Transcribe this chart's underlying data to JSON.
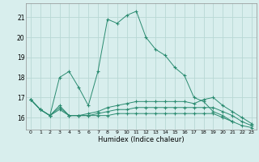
{
  "xlabel": "Humidex (Indice chaleur)",
  "x": [
    0,
    1,
    2,
    3,
    4,
    5,
    6,
    7,
    8,
    9,
    10,
    11,
    12,
    13,
    14,
    15,
    16,
    17,
    18,
    19,
    20,
    21,
    22,
    23
  ],
  "line1": [
    16.9,
    16.4,
    16.1,
    18.0,
    18.3,
    17.5,
    16.6,
    18.3,
    20.9,
    20.7,
    21.1,
    21.3,
    20.0,
    19.4,
    19.1,
    18.5,
    18.1,
    17.0,
    16.8,
    16.3,
    16.1,
    15.8,
    null,
    null
  ],
  "line2": [
    16.9,
    16.4,
    16.1,
    16.6,
    16.1,
    16.1,
    16.2,
    16.3,
    16.5,
    16.6,
    16.7,
    16.8,
    16.8,
    16.8,
    16.8,
    16.8,
    16.8,
    16.7,
    16.9,
    17.0,
    16.6,
    16.3,
    16.0,
    15.7
  ],
  "line3": [
    16.9,
    16.4,
    16.1,
    16.5,
    16.1,
    16.1,
    16.1,
    16.2,
    16.3,
    16.4,
    16.4,
    16.5,
    16.5,
    16.5,
    16.5,
    16.5,
    16.5,
    16.5,
    16.5,
    16.5,
    16.3,
    16.1,
    15.8,
    15.6
  ],
  "line4": [
    16.9,
    16.4,
    16.1,
    16.4,
    16.1,
    16.1,
    16.1,
    16.1,
    16.1,
    16.2,
    16.2,
    16.2,
    16.2,
    16.2,
    16.2,
    16.2,
    16.2,
    16.2,
    16.2,
    16.2,
    16.0,
    15.8,
    15.6,
    15.5
  ],
  "color": "#2a8b70",
  "bg_color": "#d8eeed",
  "grid_color": "#b8d8d4",
  "ylim": [
    15.4,
    21.7
  ],
  "xlim": [
    -0.5,
    23.5
  ],
  "yticks": [
    16,
    17,
    18,
    19,
    20,
    21
  ],
  "xticks": [
    0,
    1,
    2,
    3,
    4,
    5,
    6,
    7,
    8,
    9,
    10,
    11,
    12,
    13,
    14,
    15,
    16,
    17,
    18,
    19,
    20,
    21,
    22,
    23
  ]
}
